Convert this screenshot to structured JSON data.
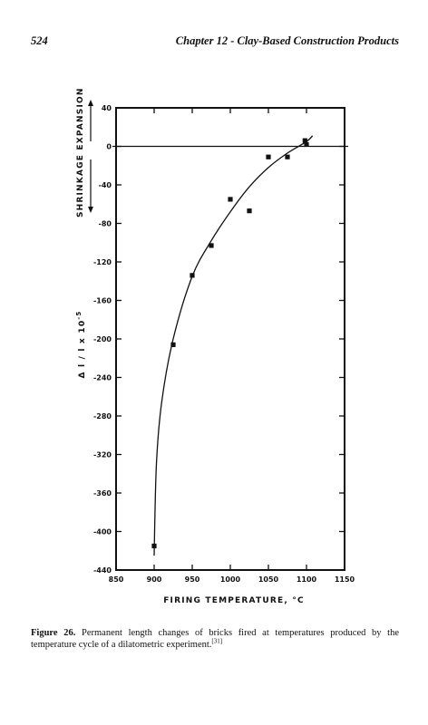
{
  "header": {
    "page_number": "524",
    "chapter_title": "Chapter 12 - Clay-Based Construction Products"
  },
  "figure": {
    "label": "Figure 26.",
    "caption_text": "Permanent length changes of bricks fired at temperatures produced by the temperature cycle of a dilatometric experiment.",
    "reference": "[31]"
  },
  "chart_data": {
    "type": "scatter",
    "title": "",
    "xlabel": "FIRING TEMPERATURE, °C",
    "ylabel": "Δ l / l x 10",
    "ylabel_exponent": "-5",
    "region_labels": {
      "upper": "EXPANSION",
      "lower": "SHRINKAGE"
    },
    "xlim": [
      850,
      1150
    ],
    "ylim": [
      -440,
      40
    ],
    "x_ticks": [
      850,
      900,
      950,
      1000,
      1050,
      1100,
      1150
    ],
    "x_tick_labels": [
      "850",
      "900",
      "950",
      "1000",
      "1050",
      "1100",
      "1150"
    ],
    "y_ticks": [
      40,
      0,
      -40,
      -80,
      -120,
      -160,
      -200,
      -240,
      -280,
      -320,
      -360,
      -400,
      -440
    ],
    "y_tick_labels": [
      "40",
      "0",
      "-40",
      "-80",
      "-120",
      "-160",
      "-200",
      "-240",
      "-280",
      "-320",
      "-360",
      "-400",
      "-440"
    ],
    "grid": false,
    "reference_line": {
      "y": 0
    },
    "series": [
      {
        "points": [
          {
            "x": 900,
            "y": -415
          },
          {
            "x": 925,
            "y": -206
          },
          {
            "x": 950,
            "y": -134
          },
          {
            "x": 975,
            "y": -103
          },
          {
            "x": 1000,
            "y": -55
          },
          {
            "x": 1025,
            "y": -67
          },
          {
            "x": 1050,
            "y": -11
          },
          {
            "x": 1075,
            "y": -11
          },
          {
            "x": 1098,
            "y": 6
          },
          {
            "x": 1100,
            "y": 2
          }
        ]
      }
    ],
    "fit_curve": {
      "points": [
        {
          "x": 900,
          "y": -425
        },
        {
          "x": 903,
          "y": -330
        },
        {
          "x": 910,
          "y": -265
        },
        {
          "x": 925,
          "y": -200
        },
        {
          "x": 950,
          "y": -135
        },
        {
          "x": 975,
          "y": -98
        },
        {
          "x": 1000,
          "y": -68
        },
        {
          "x": 1025,
          "y": -42
        },
        {
          "x": 1050,
          "y": -22
        },
        {
          "x": 1075,
          "y": -7
        },
        {
          "x": 1100,
          "y": 5
        },
        {
          "x": 1108,
          "y": 11
        }
      ]
    }
  }
}
